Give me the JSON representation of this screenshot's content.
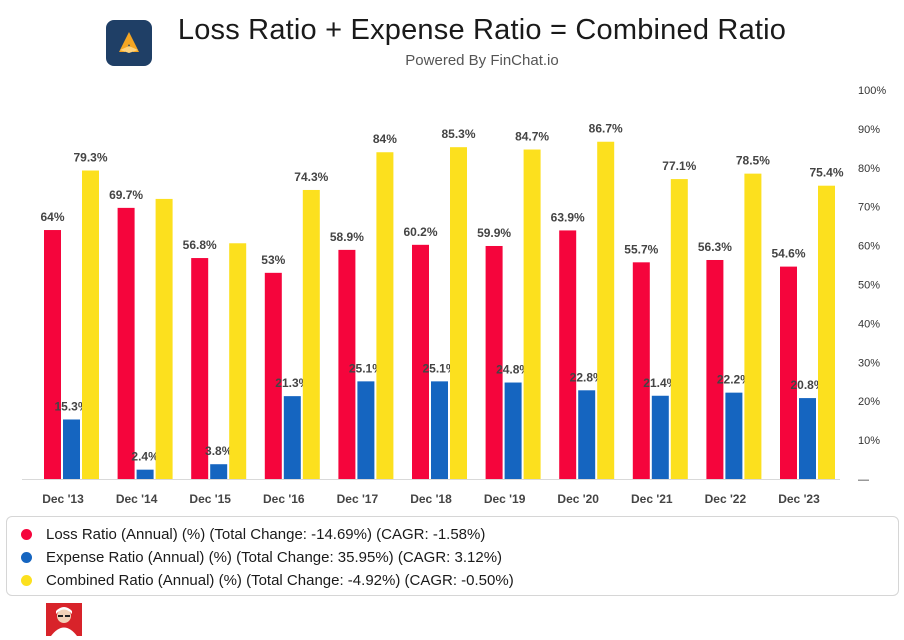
{
  "header": {
    "title": "Loss Ratio + Expense Ratio = Combined Ratio",
    "subtitle": "Powered By FinChat.io"
  },
  "colors": {
    "loss": "#f5053c",
    "expense": "#1565c0",
    "combined": "#fce01e",
    "logo_bg": "#1f3f66",
    "logo_accent": "#f5a623"
  },
  "icons": {
    "logo": "finchat-logo-icon",
    "avatar": "person-avatar-icon"
  },
  "chart_data": {
    "type": "bar",
    "categories": [
      "Dec '13",
      "Dec '14",
      "Dec '15",
      "Dec '16",
      "Dec '17",
      "Dec '18",
      "Dec '19",
      "Dec '20",
      "Dec '21",
      "Dec '22",
      "Dec '23"
    ],
    "series": [
      {
        "name": "Loss Ratio",
        "key": "loss",
        "values": [
          64,
          69.7,
          56.8,
          53,
          58.9,
          60.2,
          59.9,
          63.9,
          55.7,
          56.3,
          54.6
        ],
        "labels": [
          "64%",
          "69.7%",
          "56.8%",
          "53%",
          "58.9%",
          "60.2%",
          "59.9%",
          "63.9%",
          "55.7%",
          "56.3%",
          "54.6%"
        ]
      },
      {
        "name": "Expense Ratio",
        "key": "expense",
        "values": [
          15.3,
          2.4,
          3.8,
          21.3,
          25.1,
          25.1,
          24.8,
          22.8,
          21.4,
          22.2,
          20.8
        ],
        "labels": [
          "15.3%",
          "2.4%",
          "3.8%",
          "21.3%",
          "25.1%",
          "25.1%",
          "24.8%",
          "22.8%",
          "21.4%",
          "22.2%",
          "20.8%"
        ]
      },
      {
        "name": "Combined Ratio",
        "key": "combined",
        "values": [
          79.3,
          72,
          60.6,
          74.3,
          84,
          85.3,
          84.7,
          86.7,
          77.1,
          78.5,
          75.4
        ],
        "labels": [
          "79.3%",
          "",
          "",
          "74.3%",
          "84%",
          "85.3%",
          "84.7%",
          "86.7%",
          "77.1%",
          "78.5%",
          "75.4%"
        ]
      }
    ],
    "y_ticks": [
      "—",
      "10%",
      "20%",
      "30%",
      "40%",
      "50%",
      "60%",
      "70%",
      "80%",
      "90%",
      "100%"
    ],
    "ylim": [
      0,
      100
    ],
    "y_axis_side": "right",
    "grid": false
  },
  "legend": {
    "items": [
      {
        "label": "Loss Ratio (Annual) (%) (Total Change: -14.69%) (CAGR: -1.58%)",
        "key": "loss"
      },
      {
        "label": "Expense Ratio (Annual) (%) (Total Change: 35.95%) (CAGR: 3.12%)",
        "key": "expense"
      },
      {
        "label": "Combined Ratio (Annual) (%) (Total Change: -4.92%) (CAGR: -0.50%)",
        "key": "combined"
      }
    ]
  }
}
